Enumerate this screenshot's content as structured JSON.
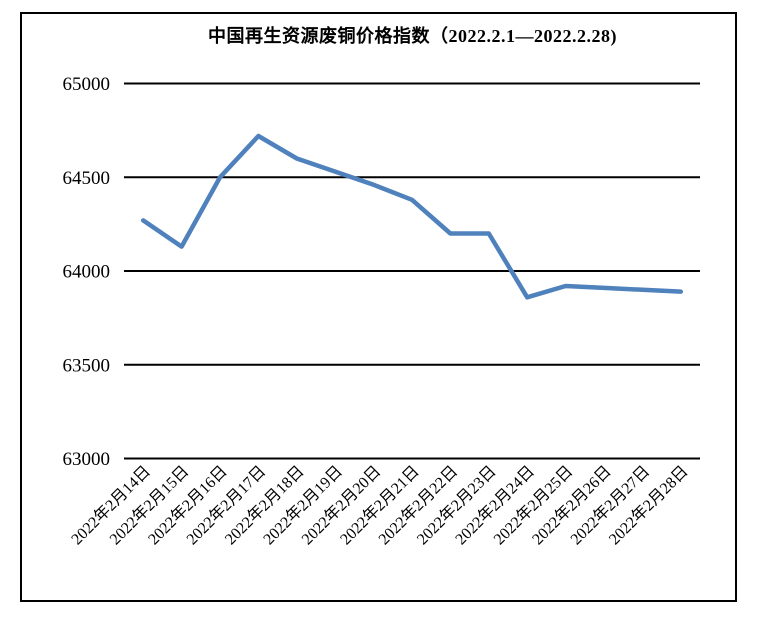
{
  "page": {
    "background_color": "#ffffff",
    "frame_border_color": "#000000"
  },
  "chart_data": {
    "type": "line",
    "title": "中国再生资源废铜价格指数（2022.2.1—2022.2.28)",
    "categories": [
      "2022年2月14日",
      "2022年2月15日",
      "2022年2月16日",
      "2022年2月17日",
      "2022年2月18日",
      "2022年2月19日",
      "2022年2月20日",
      "2022年2月21日",
      "2022年2月22日",
      "2022年2月23日",
      "2022年2月24日",
      "2022年2月25日",
      "2022年2月26日",
      "2022年2月27日",
      "2022年2月28日"
    ],
    "values": [
      64270,
      64130,
      64500,
      64720,
      64600,
      64530,
      64460,
      64380,
      64200,
      64200,
      63860,
      63920,
      63910,
      63900,
      63890
    ],
    "xlabel": "",
    "ylabel": "",
    "ylim": [
      63000,
      65000
    ],
    "yticks": [
      65000,
      64500,
      64000,
      63500,
      63000
    ],
    "grid": true,
    "legend_position": "none",
    "line_color": "#4F81BD",
    "gridline_color": "#000000",
    "text_color": "#000000"
  }
}
